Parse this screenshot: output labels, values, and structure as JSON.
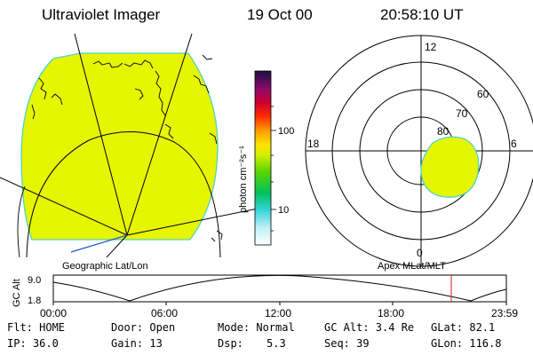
{
  "header": {
    "instrument": "Ultraviolet Imager",
    "date": "19 Oct 00",
    "time": "20:58:10 UT"
  },
  "panels": {
    "left_label": "Geographic Lat/Lon",
    "right_label": "Apex MLat/MLT"
  },
  "colorbar": {
    "unit_label": "photon cm⁻²s⁻¹",
    "tick_100": "100",
    "tick_10": "10"
  },
  "polar": {
    "mlt_top": "12",
    "mlt_left": "18",
    "mlt_right": "6",
    "mlt_bottom": "0",
    "lat_60": "60",
    "lat_70": "70",
    "lat_80": "80"
  },
  "orbit": {
    "ylabel": "GC Alt",
    "y_hi": "9.0",
    "y_lo": "1.8",
    "x_ticks": [
      "00:00",
      "06:00",
      "12:00",
      "18:00",
      "23:59"
    ]
  },
  "info": {
    "flt": "Flt: HOME",
    "ip": "IP: 36.0",
    "door": "Door: Open",
    "gain": "Gain: 13",
    "mode": "Mode: Normal",
    "dsp_label": "Dsp:",
    "dsp_value": "5.3",
    "gcalt": "GC Alt: 3.4 Re",
    "seq": "Seq: 39",
    "glat": "GLat:  82.1",
    "glon": "GLon: 116.8"
  },
  "colors": {
    "emission": "#e6f500",
    "emission_edge": "#4fd3c8",
    "marker": "#cc2222"
  }
}
